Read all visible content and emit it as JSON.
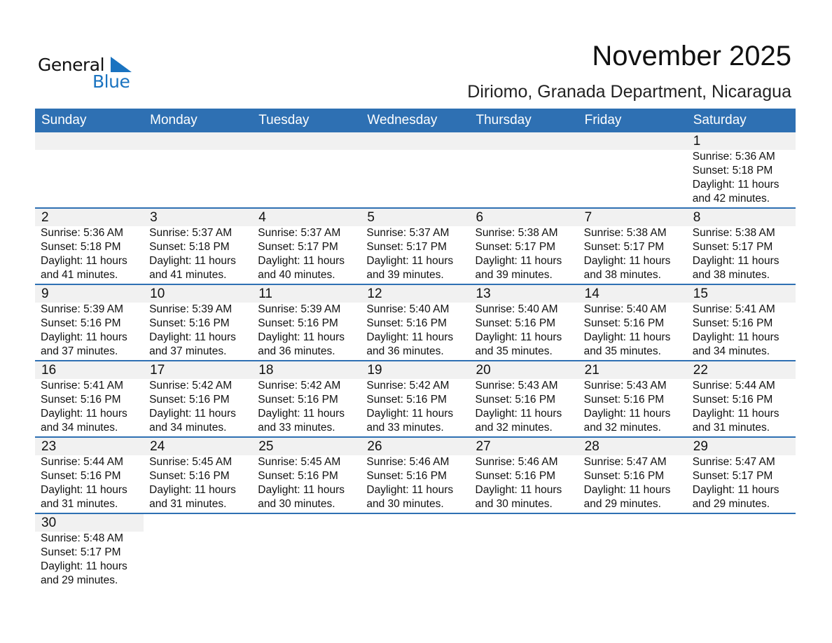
{
  "logo": {
    "word1": "General",
    "word2": "Blue",
    "color": "#1a73c0"
  },
  "title": "November 2025",
  "subtitle": "Diriomo, Granada Department, Nicaragua",
  "header_color": "#2e70b3",
  "weekdays": [
    "Sunday",
    "Monday",
    "Tuesday",
    "Wednesday",
    "Thursday",
    "Friday",
    "Saturday"
  ],
  "weeks": [
    [
      null,
      null,
      null,
      null,
      null,
      null,
      {
        "day": "1",
        "sunrise": "Sunrise: 5:36 AM",
        "sunset": "Sunset: 5:18 PM",
        "daylight": "Daylight: 11 hours",
        "minutes": "and 42 minutes."
      }
    ],
    [
      {
        "day": "2",
        "sunrise": "Sunrise: 5:36 AM",
        "sunset": "Sunset: 5:18 PM",
        "daylight": "Daylight: 11 hours",
        "minutes": "and 41 minutes."
      },
      {
        "day": "3",
        "sunrise": "Sunrise: 5:37 AM",
        "sunset": "Sunset: 5:18 PM",
        "daylight": "Daylight: 11 hours",
        "minutes": "and 41 minutes."
      },
      {
        "day": "4",
        "sunrise": "Sunrise: 5:37 AM",
        "sunset": "Sunset: 5:17 PM",
        "daylight": "Daylight: 11 hours",
        "minutes": "and 40 minutes."
      },
      {
        "day": "5",
        "sunrise": "Sunrise: 5:37 AM",
        "sunset": "Sunset: 5:17 PM",
        "daylight": "Daylight: 11 hours",
        "minutes": "and 39 minutes."
      },
      {
        "day": "6",
        "sunrise": "Sunrise: 5:38 AM",
        "sunset": "Sunset: 5:17 PM",
        "daylight": "Daylight: 11 hours",
        "minutes": "and 39 minutes."
      },
      {
        "day": "7",
        "sunrise": "Sunrise: 5:38 AM",
        "sunset": "Sunset: 5:17 PM",
        "daylight": "Daylight: 11 hours",
        "minutes": "and 38 minutes."
      },
      {
        "day": "8",
        "sunrise": "Sunrise: 5:38 AM",
        "sunset": "Sunset: 5:17 PM",
        "daylight": "Daylight: 11 hours",
        "minutes": "and 38 minutes."
      }
    ],
    [
      {
        "day": "9",
        "sunrise": "Sunrise: 5:39 AM",
        "sunset": "Sunset: 5:16 PM",
        "daylight": "Daylight: 11 hours",
        "minutes": "and 37 minutes."
      },
      {
        "day": "10",
        "sunrise": "Sunrise: 5:39 AM",
        "sunset": "Sunset: 5:16 PM",
        "daylight": "Daylight: 11 hours",
        "minutes": "and 37 minutes."
      },
      {
        "day": "11",
        "sunrise": "Sunrise: 5:39 AM",
        "sunset": "Sunset: 5:16 PM",
        "daylight": "Daylight: 11 hours",
        "minutes": "and 36 minutes."
      },
      {
        "day": "12",
        "sunrise": "Sunrise: 5:40 AM",
        "sunset": "Sunset: 5:16 PM",
        "daylight": "Daylight: 11 hours",
        "minutes": "and 36 minutes."
      },
      {
        "day": "13",
        "sunrise": "Sunrise: 5:40 AM",
        "sunset": "Sunset: 5:16 PM",
        "daylight": "Daylight: 11 hours",
        "minutes": "and 35 minutes."
      },
      {
        "day": "14",
        "sunrise": "Sunrise: 5:40 AM",
        "sunset": "Sunset: 5:16 PM",
        "daylight": "Daylight: 11 hours",
        "minutes": "and 35 minutes."
      },
      {
        "day": "15",
        "sunrise": "Sunrise: 5:41 AM",
        "sunset": "Sunset: 5:16 PM",
        "daylight": "Daylight: 11 hours",
        "minutes": "and 34 minutes."
      }
    ],
    [
      {
        "day": "16",
        "sunrise": "Sunrise: 5:41 AM",
        "sunset": "Sunset: 5:16 PM",
        "daylight": "Daylight: 11 hours",
        "minutes": "and 34 minutes."
      },
      {
        "day": "17",
        "sunrise": "Sunrise: 5:42 AM",
        "sunset": "Sunset: 5:16 PM",
        "daylight": "Daylight: 11 hours",
        "minutes": "and 34 minutes."
      },
      {
        "day": "18",
        "sunrise": "Sunrise: 5:42 AM",
        "sunset": "Sunset: 5:16 PM",
        "daylight": "Daylight: 11 hours",
        "minutes": "and 33 minutes."
      },
      {
        "day": "19",
        "sunrise": "Sunrise: 5:42 AM",
        "sunset": "Sunset: 5:16 PM",
        "daylight": "Daylight: 11 hours",
        "minutes": "and 33 minutes."
      },
      {
        "day": "20",
        "sunrise": "Sunrise: 5:43 AM",
        "sunset": "Sunset: 5:16 PM",
        "daylight": "Daylight: 11 hours",
        "minutes": "and 32 minutes."
      },
      {
        "day": "21",
        "sunrise": "Sunrise: 5:43 AM",
        "sunset": "Sunset: 5:16 PM",
        "daylight": "Daylight: 11 hours",
        "minutes": "and 32 minutes."
      },
      {
        "day": "22",
        "sunrise": "Sunrise: 5:44 AM",
        "sunset": "Sunset: 5:16 PM",
        "daylight": "Daylight: 11 hours",
        "minutes": "and 31 minutes."
      }
    ],
    [
      {
        "day": "23",
        "sunrise": "Sunrise: 5:44 AM",
        "sunset": "Sunset: 5:16 PM",
        "daylight": "Daylight: 11 hours",
        "minutes": "and 31 minutes."
      },
      {
        "day": "24",
        "sunrise": "Sunrise: 5:45 AM",
        "sunset": "Sunset: 5:16 PM",
        "daylight": "Daylight: 11 hours",
        "minutes": "and 31 minutes."
      },
      {
        "day": "25",
        "sunrise": "Sunrise: 5:45 AM",
        "sunset": "Sunset: 5:16 PM",
        "daylight": "Daylight: 11 hours",
        "minutes": "and 30 minutes."
      },
      {
        "day": "26",
        "sunrise": "Sunrise: 5:46 AM",
        "sunset": "Sunset: 5:16 PM",
        "daylight": "Daylight: 11 hours",
        "minutes": "and 30 minutes."
      },
      {
        "day": "27",
        "sunrise": "Sunrise: 5:46 AM",
        "sunset": "Sunset: 5:16 PM",
        "daylight": "Daylight: 11 hours",
        "minutes": "and 30 minutes."
      },
      {
        "day": "28",
        "sunrise": "Sunrise: 5:47 AM",
        "sunset": "Sunset: 5:16 PM",
        "daylight": "Daylight: 11 hours",
        "minutes": "and 29 minutes."
      },
      {
        "day": "29",
        "sunrise": "Sunrise: 5:47 AM",
        "sunset": "Sunset: 5:17 PM",
        "daylight": "Daylight: 11 hours",
        "minutes": "and 29 minutes."
      }
    ],
    [
      {
        "day": "30",
        "sunrise": "Sunrise: 5:48 AM",
        "sunset": "Sunset: 5:17 PM",
        "daylight": "Daylight: 11 hours",
        "minutes": "and 29 minutes."
      },
      null,
      null,
      null,
      null,
      null,
      null
    ]
  ]
}
